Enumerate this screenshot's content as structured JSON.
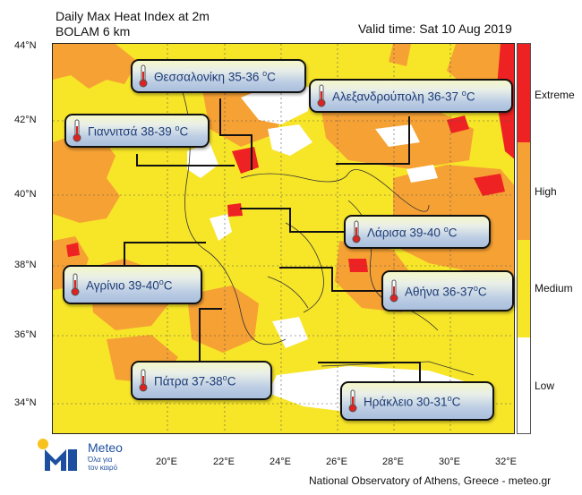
{
  "header": {
    "title": "Daily Max Heat Index at 2m",
    "model": "BOLAM 6 km",
    "valid_time": "Valid time: Sat 10 Aug 2019"
  },
  "axes": {
    "lat_ticks": [
      "44°N",
      "42°N",
      "40°N",
      "38°N",
      "36°N",
      "34°N"
    ],
    "lon_ticks": [
      "20°E",
      "22°E",
      "24°E",
      "26°E",
      "28°E",
      "30°E",
      "32°E"
    ]
  },
  "legend": {
    "categories": [
      "Extreme",
      "High",
      "Medium",
      "Low"
    ],
    "colors": {
      "extreme": "#ee2222",
      "high": "#f6a134",
      "medium": "#f7e528",
      "low": "#ffffff"
    }
  },
  "cities": [
    {
      "name": "Θεσσαλονίκη",
      "range": "35-36",
      "unit": "C"
    },
    {
      "name": "Αλεξανδρούπολη",
      "range": "36-37",
      "unit": "C"
    },
    {
      "name": "Γιαννιτσά",
      "range": "38-39",
      "unit": "C"
    },
    {
      "name": "Λάρισα",
      "range": "39-40",
      "unit": "C"
    },
    {
      "name": "Αγρίνιο",
      "range": "39-40",
      "unit": "C"
    },
    {
      "name": "Αθήνα",
      "range": "36-37",
      "unit": "C"
    },
    {
      "name": "Πάτρα",
      "range": "37-38",
      "unit": "C"
    },
    {
      "name": "Ηράκλειο",
      "range": "30-31",
      "unit": "C"
    }
  ],
  "logo": {
    "brand": "Meteo",
    "tagline_1": "Όλα για",
    "tagline_2": "τον καιρό"
  },
  "footer": "National Observatory of Athens, Greece - meteo.gr",
  "icons": [
    "thermometer-icon",
    "sun-icon",
    "meteo-logo-icon"
  ]
}
